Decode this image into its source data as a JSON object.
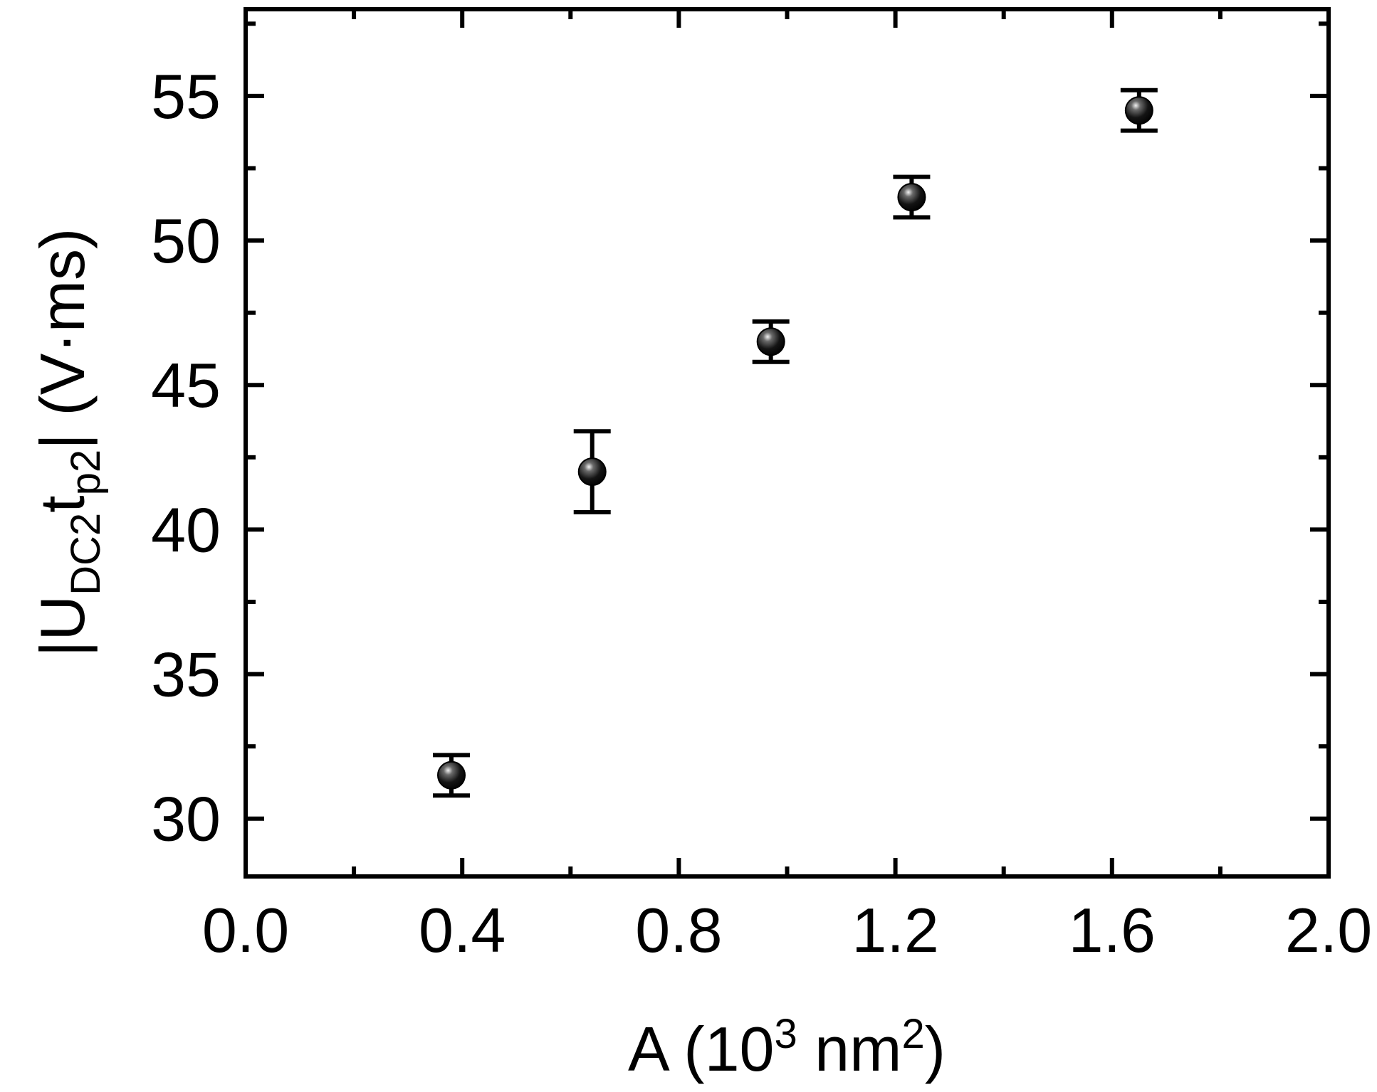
{
  "chart_data": {
    "type": "scatter",
    "title": "",
    "xlabel": {
      "main": "A (10",
      "sup1": "3",
      "mid": " nm",
      "sup2": "2",
      "end": ")"
    },
    "ylabel": {
      "pre": "|U",
      "sub1": "DC2",
      "mid": "t",
      "sub2": "p2",
      "post": "| (V·ms)"
    },
    "xlim": [
      0.0,
      2.0
    ],
    "ylim": [
      28,
      58
    ],
    "xticks": [
      0.0,
      0.4,
      0.8,
      1.2,
      1.6,
      2.0
    ],
    "xtick_labels": [
      "0.0",
      "0.4",
      "0.8",
      "1.2",
      "1.6",
      "2.0"
    ],
    "yticks": [
      30,
      35,
      40,
      45,
      50,
      55
    ],
    "ytick_labels": [
      "30",
      "35",
      "40",
      "45",
      "50",
      "55"
    ],
    "grid": false,
    "series": [
      {
        "marker": "black-sphere",
        "x": [
          0.38,
          0.64,
          0.97,
          1.23,
          1.65
        ],
        "y": [
          31.5,
          42.0,
          46.5,
          51.5,
          54.5
        ],
        "yerr": [
          0.7,
          1.4,
          0.7,
          0.7,
          0.7
        ]
      }
    ],
    "colors": {
      "marker": "#000000",
      "axis": "#000000"
    }
  }
}
